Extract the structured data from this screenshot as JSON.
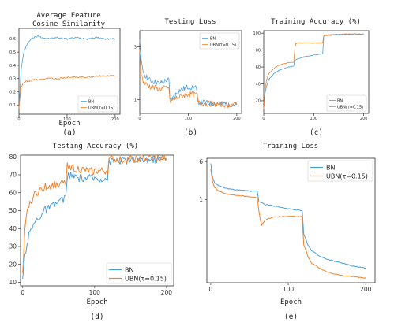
{
  "colors": {
    "bn": "#4a9fdc",
    "ubn": "#f0822a"
  },
  "chart_data": [
    {
      "type": "line",
      "title": "Average Feature\nCosine Similarity",
      "xlabel": "Epoch",
      "caption": "(a)",
      "xlim": [
        0,
        210
      ],
      "ylim": [
        0.03,
        0.68
      ],
      "xticks": [
        "0",
        "100",
        "200"
      ],
      "yticks": [
        "0.1",
        "0.2",
        "0.3",
        "0.4",
        "0.5",
        "0.6"
      ],
      "legend_position": "lower-right",
      "series": [
        {
          "name": "BN",
          "x": [
            0,
            2,
            5,
            10,
            15,
            20,
            25,
            30,
            40,
            60,
            80,
            100,
            120,
            140,
            160,
            180,
            200
          ],
          "y": [
            0.08,
            0.2,
            0.38,
            0.5,
            0.54,
            0.58,
            0.6,
            0.61,
            0.62,
            0.6,
            0.61,
            0.6,
            0.61,
            0.6,
            0.61,
            0.6,
            0.6
          ]
        },
        {
          "name": "UBN(τ=0.15)",
          "x": [
            0,
            2,
            5,
            10,
            15,
            20,
            30,
            40,
            60,
            80,
            100,
            120,
            140,
            160,
            180,
            200
          ],
          "y": [
            0.07,
            0.15,
            0.24,
            0.27,
            0.28,
            0.28,
            0.29,
            0.29,
            0.3,
            0.3,
            0.31,
            0.31,
            0.31,
            0.32,
            0.32,
            0.32
          ]
        }
      ]
    },
    {
      "type": "line",
      "title": "Testing Loss",
      "xlabel": "",
      "caption": "(b)",
      "xlim": [
        0,
        210
      ],
      "ylim": [
        0.75,
        4.2
      ],
      "yscale": "log",
      "xticks": [
        "0",
        "100",
        "200"
      ],
      "yticks": [
        "1",
        "3"
      ],
      "legend_position": "top-right",
      "series": [
        {
          "name": "BN",
          "x": [
            0,
            3,
            6,
            10,
            20,
            30,
            40,
            50,
            55,
            60,
            62,
            70,
            80,
            100,
            110,
            118,
            120,
            122,
            140,
            160,
            180,
            200
          ],
          "y": [
            3.5,
            2.2,
            1.8,
            1.7,
            1.5,
            1.45,
            1.4,
            1.45,
            1.5,
            1.5,
            0.98,
            1.05,
            1.2,
            1.3,
            1.3,
            1.25,
            0.96,
            0.95,
            0.93,
            0.92,
            0.91,
            0.9
          ]
        },
        {
          "name": "UBN(τ=0.15)",
          "x": [
            0,
            3,
            6,
            10,
            20,
            30,
            40,
            50,
            55,
            60,
            62,
            70,
            80,
            100,
            110,
            118,
            120,
            122,
            140,
            160,
            180,
            200
          ],
          "y": [
            2.8,
            1.7,
            1.5,
            1.4,
            1.32,
            1.28,
            1.25,
            1.26,
            1.28,
            1.3,
            0.95,
            1.0,
            1.05,
            1.12,
            1.12,
            1.1,
            0.95,
            0.94,
            0.92,
            0.91,
            0.9,
            0.9
          ]
        }
      ]
    },
    {
      "type": "line",
      "title": "Training Accuracy (%)",
      "xlabel": "",
      "caption": "(c)",
      "xlim": [
        0,
        210
      ],
      "ylim": [
        5,
        103
      ],
      "xticks": [
        "0",
        "100",
        "200"
      ],
      "yticks": [
        "20",
        "40",
        "60",
        "80",
        "100"
      ],
      "legend_position": "lower-right",
      "series": [
        {
          "name": "BN",
          "x": [
            0,
            3,
            6,
            10,
            20,
            30,
            40,
            50,
            60,
            62,
            70,
            80,
            100,
            110,
            118,
            120,
            122,
            140,
            160,
            180,
            200
          ],
          "y": [
            10,
            30,
            38,
            45,
            52,
            56,
            58,
            60,
            61,
            68,
            70,
            72,
            74,
            75,
            76,
            96,
            97,
            98,
            98.5,
            99,
            99
          ]
        },
        {
          "name": "UBN(τ=0.15)",
          "x": [
            0,
            3,
            6,
            10,
            20,
            30,
            40,
            50,
            60,
            62,
            64,
            70,
            80,
            100,
            110,
            118,
            120,
            122,
            140,
            160,
            180,
            200
          ],
          "y": [
            10,
            35,
            45,
            52,
            58,
            62,
            64,
            65,
            66,
            80,
            88,
            88.5,
            88.5,
            88.5,
            88.5,
            88.5,
            97,
            98,
            98.5,
            99,
            99,
            99
          ]
        }
      ]
    },
    {
      "type": "line",
      "title": "Testing Accuracy (%)",
      "xlabel": "Epoch",
      "caption": "(d)",
      "xlim": [
        -3,
        210
      ],
      "ylim": [
        8,
        81
      ],
      "xticks": [
        "0",
        "100",
        "200"
      ],
      "yticks": [
        "10",
        "20",
        "30",
        "40",
        "50",
        "60",
        "70",
        "80"
      ],
      "legend_position": "lower-right",
      "series": [
        {
          "name": "BN",
          "x": [
            0,
            3,
            6,
            10,
            15,
            20,
            30,
            40,
            50,
            58,
            60,
            62,
            70,
            80,
            90,
            100,
            110,
            118,
            120,
            122,
            140,
            160,
            180,
            200
          ],
          "y": [
            12,
            25,
            32,
            38,
            42,
            45,
            50,
            52,
            55,
            57,
            57,
            70,
            69,
            68,
            68,
            68,
            68,
            68,
            77,
            77.5,
            78,
            78,
            78.5,
            78.5
          ]
        },
        {
          "name": "UBN(τ=0.15)",
          "x": [
            0,
            3,
            6,
            10,
            15,
            20,
            30,
            40,
            50,
            58,
            60,
            62,
            70,
            80,
            90,
            100,
            110,
            118,
            120,
            122,
            140,
            160,
            180,
            200
          ],
          "y": [
            15,
            38,
            48,
            55,
            58,
            60,
            63,
            64,
            65,
            65,
            65,
            76,
            74,
            73,
            72,
            72,
            72,
            72,
            78,
            78.5,
            78.5,
            79,
            79,
            79
          ]
        }
      ]
    },
    {
      "type": "line",
      "title": "Training Loss",
      "xlabel": "Epoch",
      "caption": "(e)",
      "xlim": [
        -5,
        212
      ],
      "ylim": [
        0.02,
        7
      ],
      "yscale": "log",
      "xticks": [
        "0",
        "100",
        "200"
      ],
      "yticks": [
        "1",
        "6"
      ],
      "legend_position": "top-right",
      "series": [
        {
          "name": "BN",
          "x": [
            0,
            2,
            5,
            10,
            20,
            30,
            40,
            50,
            60,
            62,
            70,
            80,
            90,
            100,
            110,
            118,
            120,
            125,
            130,
            140,
            150,
            160,
            170,
            180,
            190,
            200
          ],
          "y": [
            5.5,
            3,
            2.2,
            1.9,
            1.7,
            1.6,
            1.55,
            1.5,
            1.48,
            0.9,
            0.8,
            0.75,
            0.7,
            0.65,
            0.62,
            0.6,
            0.2,
            0.12,
            0.09,
            0.07,
            0.06,
            0.055,
            0.05,
            0.045,
            0.042,
            0.04
          ]
        },
        {
          "name": "UBN(τ=0.15)",
          "x": [
            0,
            2,
            5,
            10,
            20,
            30,
            40,
            50,
            60,
            62,
            64,
            66,
            70,
            80,
            90,
            100,
            110,
            118,
            120,
            125,
            130,
            140,
            150,
            160,
            170,
            180,
            190,
            200
          ],
          "y": [
            4.2,
            2.4,
            1.8,
            1.5,
            1.3,
            1.25,
            1.2,
            1.15,
            1.1,
            0.6,
            0.38,
            0.3,
            0.38,
            0.44,
            0.45,
            0.45,
            0.45,
            0.45,
            0.12,
            0.07,
            0.05,
            0.04,
            0.033,
            0.03,
            0.028,
            0.027,
            0.026,
            0.025
          ]
        }
      ]
    }
  ]
}
